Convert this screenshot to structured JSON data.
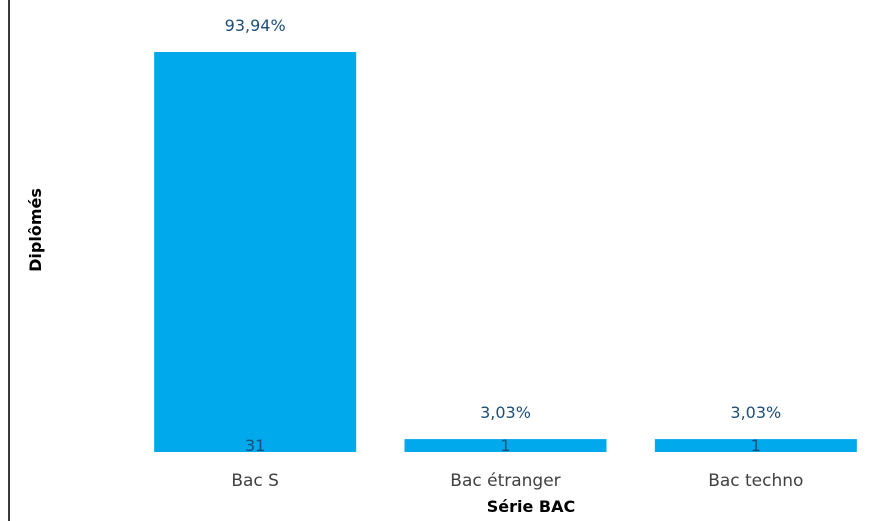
{
  "chart_data": {
    "type": "bar",
    "categories": [
      "Bac S",
      "Bac étranger",
      "Bac techno"
    ],
    "values": [
      31,
      1,
      1
    ],
    "percent_labels": [
      "93,94%",
      "3,03%",
      "3,03%"
    ],
    "value_labels": [
      "31",
      "1",
      "1"
    ],
    "xlabel": "Série BAC",
    "ylabel": "Diplômés",
    "ylim": [
      0,
      31
    ],
    "grid": false,
    "bar_color": "#00A8EC",
    "percent_label_color": "#1C4E7A",
    "value_label_color": "#1C4E7A",
    "axis_text_color": "#404040",
    "axis_title_color": "#000000"
  }
}
